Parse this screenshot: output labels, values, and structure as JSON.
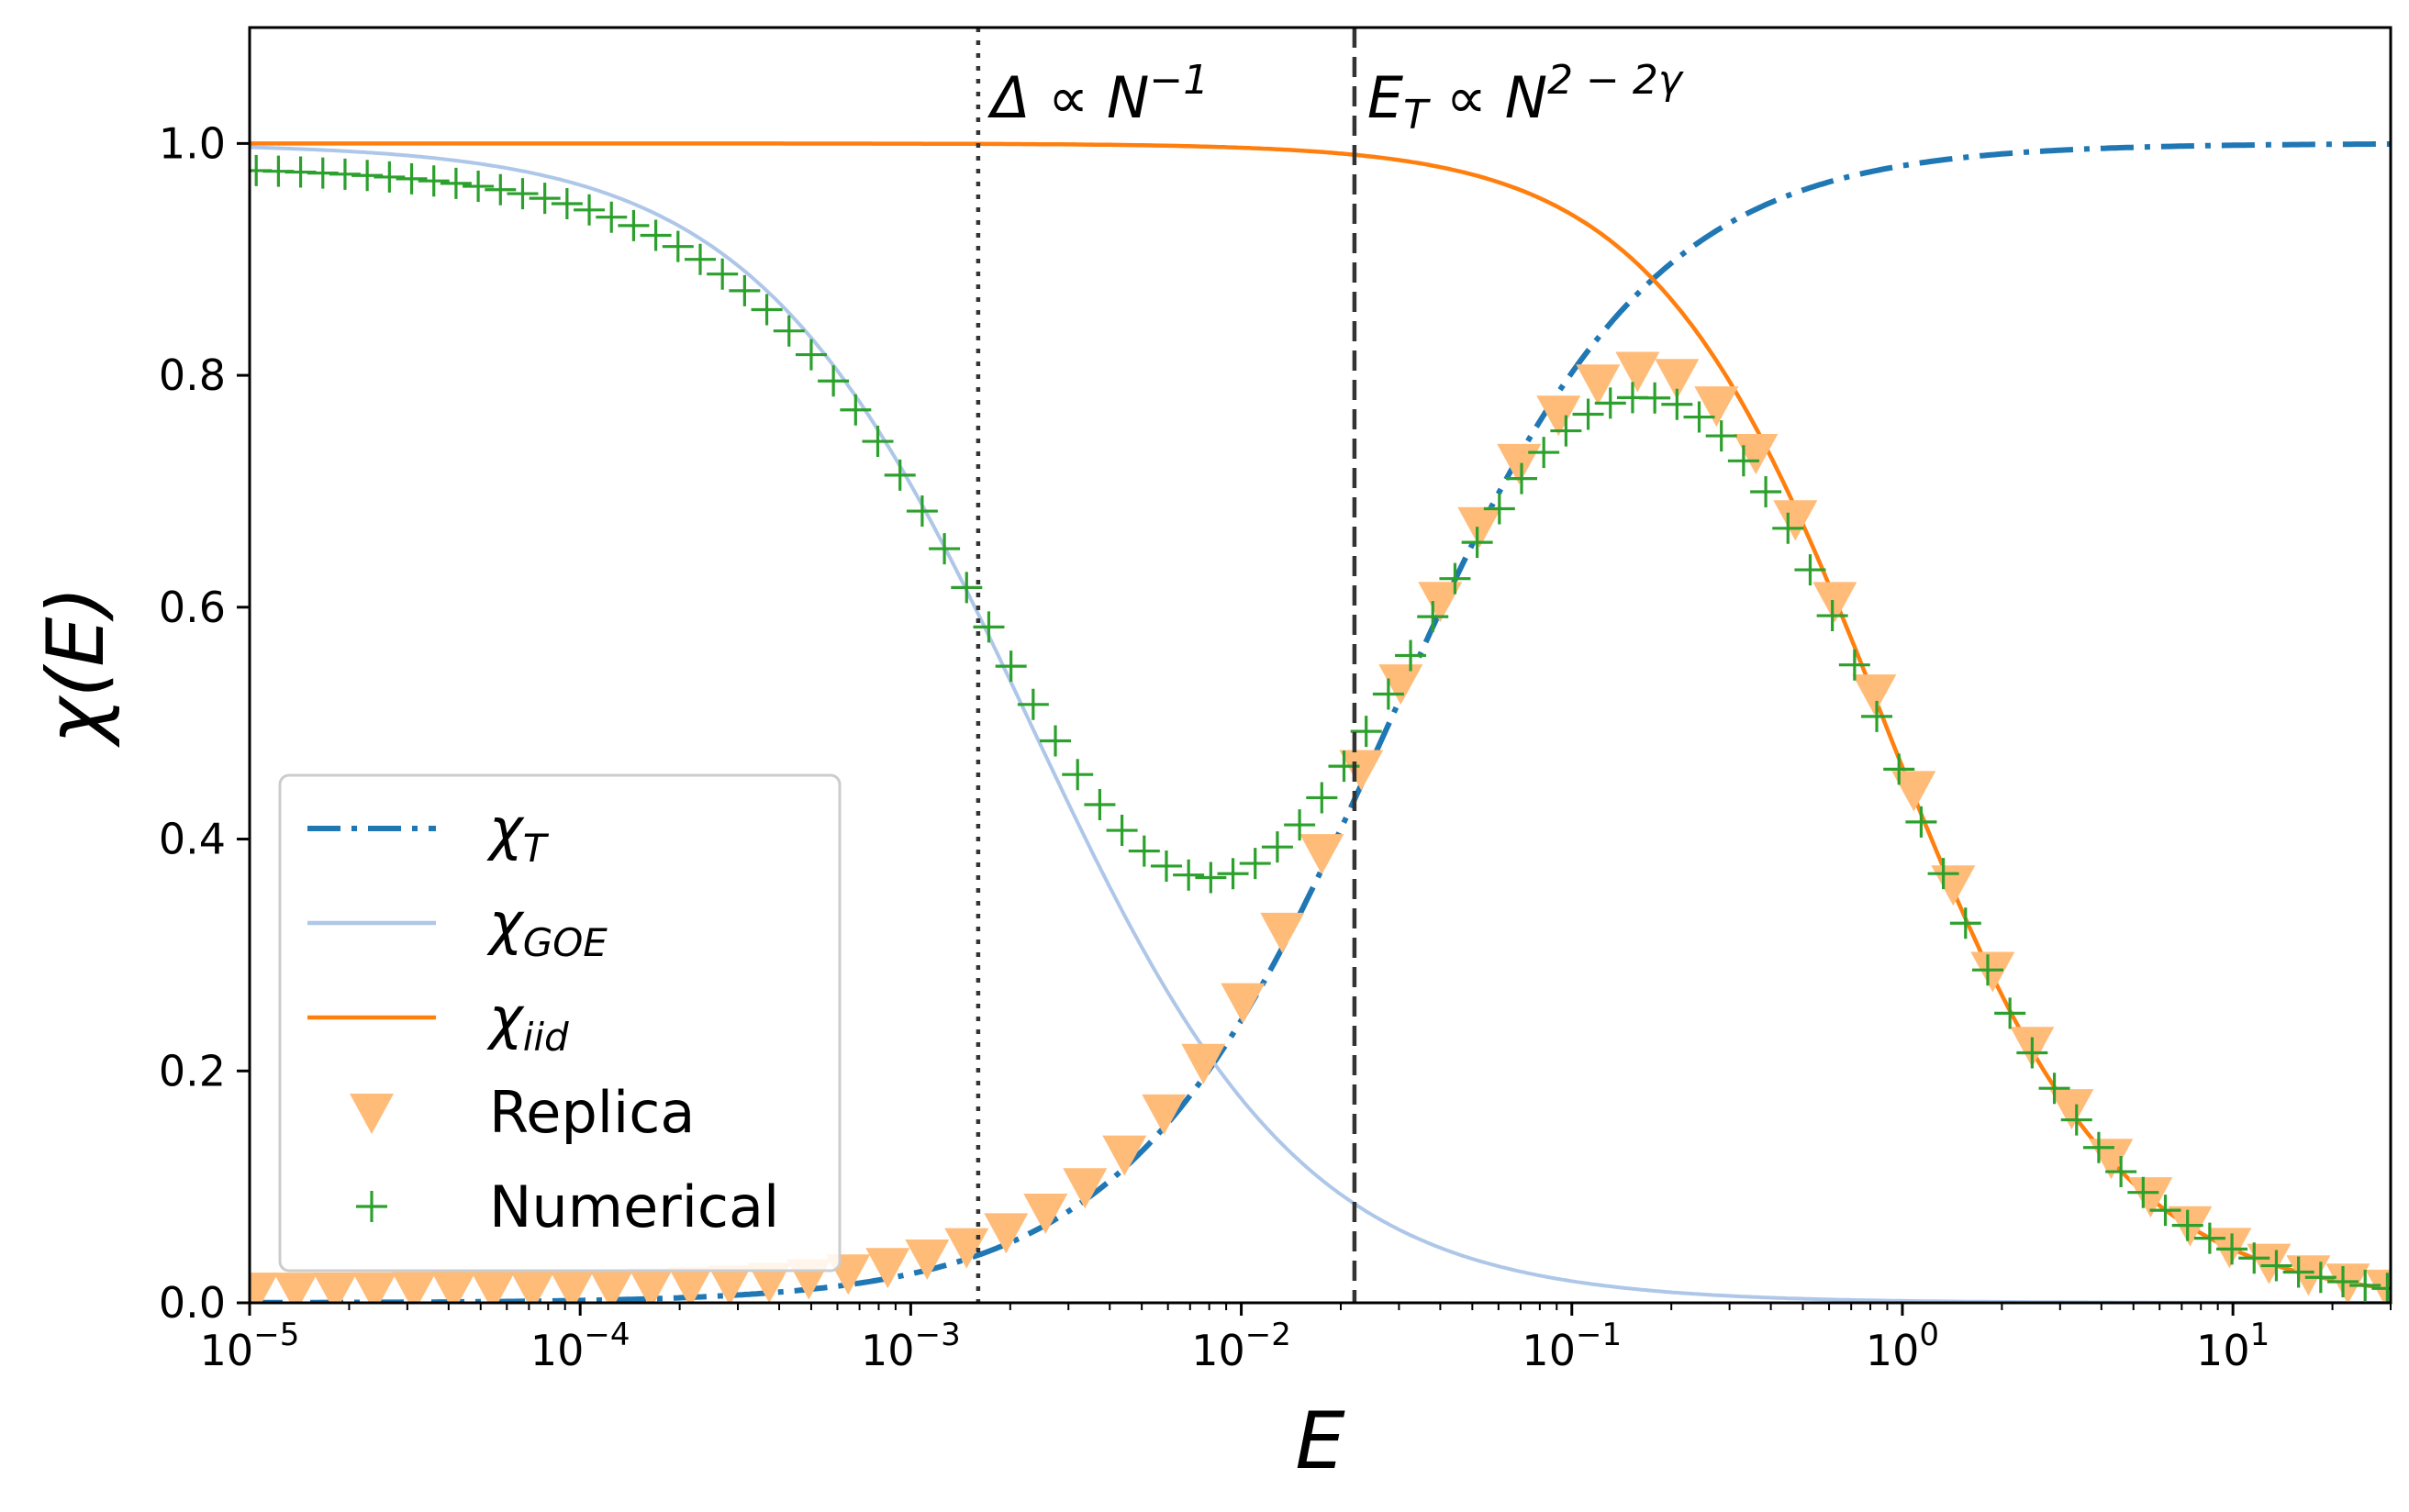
{
  "chart_data": {
    "type": "line",
    "xscale": "log",
    "xlim": [
      1e-05,
      30
    ],
    "ylim": [
      0.0,
      1.1
    ],
    "xlabel": "E",
    "ylabel": "χ(E)",
    "x_ticks": [
      {
        "value": 1e-05,
        "mant": "10",
        "exp": "−5"
      },
      {
        "value": 0.0001,
        "mant": "10",
        "exp": "−4"
      },
      {
        "value": 0.001,
        "mant": "10",
        "exp": "−3"
      },
      {
        "value": 0.01,
        "mant": "10",
        "exp": "−2"
      },
      {
        "value": 0.1,
        "mant": "10",
        "exp": "−1"
      },
      {
        "value": 1,
        "mant": "10",
        "exp": "0"
      },
      {
        "value": 10,
        "mant": "10",
        "exp": "1"
      }
    ],
    "y_ticks": [
      {
        "value": 0.0,
        "label": "0.0"
      },
      {
        "value": 0.2,
        "label": "0.2"
      },
      {
        "value": 0.4,
        "label": "0.4"
      },
      {
        "value": 0.6,
        "label": "0.6"
      },
      {
        "value": 0.8,
        "label": "0.8"
      },
      {
        "value": 1.0,
        "label": "1.0"
      }
    ],
    "vlines": [
      {
        "x": 0.0016,
        "style": "dotted",
        "label": {
          "base": "Δ ∝ N",
          "sub": "",
          "sup": "−1"
        }
      },
      {
        "x": 0.022,
        "style": "dashed",
        "label": {
          "base": "E",
          "sub": "T",
          "mid": " ∝ N",
          "sup": "2 − 2γ"
        }
      }
    ],
    "series": [
      {
        "name": "χ_T",
        "legend_base": "χ",
        "legend_sub": "T",
        "style": "dashdot",
        "color": "#1f77b4",
        "model": "thouless",
        "params": {
          "ET": 0.022
        }
      },
      {
        "name": "χ_GOE",
        "legend_base": "χ",
        "legend_sub": "GOE",
        "style": "solid",
        "color": "#aec7e8",
        "model": "goe",
        "params": {
          "D": 0.0016
        }
      },
      {
        "name": "χ_iid",
        "legend_base": "χ",
        "legend_sub": "iid",
        "style": "solid",
        "color": "#ff7f0e",
        "model": "iid",
        "params": {
          "a": 0.33
        }
      },
      {
        "name": "Replica",
        "legend_label": "Replica",
        "style": "marker-triangle-down",
        "color": "#ffbb78",
        "model": "replica"
      },
      {
        "name": "Numerical",
        "legend_label": "Numerical",
        "style": "marker-plus",
        "color": "#2ca02c",
        "model": "numerical"
      }
    ],
    "legend_position": "lower-left"
  }
}
